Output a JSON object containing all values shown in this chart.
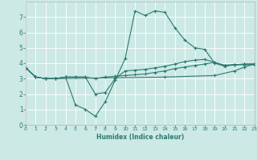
{
  "xlabel": "Humidex (Indice chaleur)",
  "xlim": [
    0,
    23
  ],
  "ylim": [
    0,
    8
  ],
  "xticks": [
    0,
    1,
    2,
    3,
    4,
    5,
    6,
    7,
    8,
    9,
    10,
    11,
    12,
    13,
    14,
    15,
    16,
    17,
    18,
    19,
    20,
    21,
    22,
    23
  ],
  "yticks": [
    0,
    1,
    2,
    3,
    4,
    5,
    6,
    7
  ],
  "line_color": "#2a7a70",
  "bg_color": "#cce9e5",
  "grid_color": "#ffffff",
  "line1_x": [
    0,
    1,
    2,
    3,
    4,
    5,
    6,
    7,
    8,
    9,
    10,
    11,
    12,
    13,
    14,
    15,
    16,
    17,
    18,
    19,
    20,
    21,
    22,
    23
  ],
  "line1_y": [
    3.7,
    3.1,
    3.0,
    3.0,
    3.1,
    1.3,
    1.0,
    0.55,
    1.5,
    2.9,
    4.3,
    7.4,
    7.1,
    7.4,
    7.3,
    6.3,
    5.5,
    5.0,
    4.9,
    4.0,
    3.8,
    3.9,
    3.9,
    3.9
  ],
  "line2_x": [
    0,
    1,
    2,
    3,
    4,
    5,
    6,
    7,
    8,
    9,
    10,
    11,
    12,
    13,
    14,
    15,
    16,
    17,
    18,
    19,
    20,
    21,
    22,
    23
  ],
  "line2_y": [
    3.7,
    3.1,
    3.0,
    3.0,
    3.1,
    3.1,
    3.1,
    2.0,
    2.1,
    3.0,
    3.5,
    3.55,
    3.6,
    3.7,
    3.8,
    3.95,
    4.1,
    4.2,
    4.25,
    4.05,
    3.85,
    3.9,
    3.95,
    3.95
  ],
  "line3_x": [
    0,
    1,
    2,
    3,
    4,
    5,
    6,
    7,
    8,
    9,
    10,
    11,
    12,
    13,
    14,
    15,
    16,
    17,
    18,
    19,
    20,
    21,
    22,
    23
  ],
  "line3_y": [
    3.7,
    3.1,
    3.0,
    3.0,
    3.1,
    3.1,
    3.1,
    3.0,
    3.1,
    3.15,
    3.2,
    3.25,
    3.3,
    3.4,
    3.5,
    3.65,
    3.75,
    3.85,
    3.95,
    4.05,
    3.87,
    3.91,
    3.93,
    3.95
  ],
  "line4_x": [
    0,
    1,
    2,
    3,
    9,
    14,
    19,
    21,
    22,
    23
  ],
  "line4_y": [
    3.7,
    3.1,
    3.0,
    3.0,
    3.05,
    3.1,
    3.2,
    3.5,
    3.75,
    3.95
  ]
}
